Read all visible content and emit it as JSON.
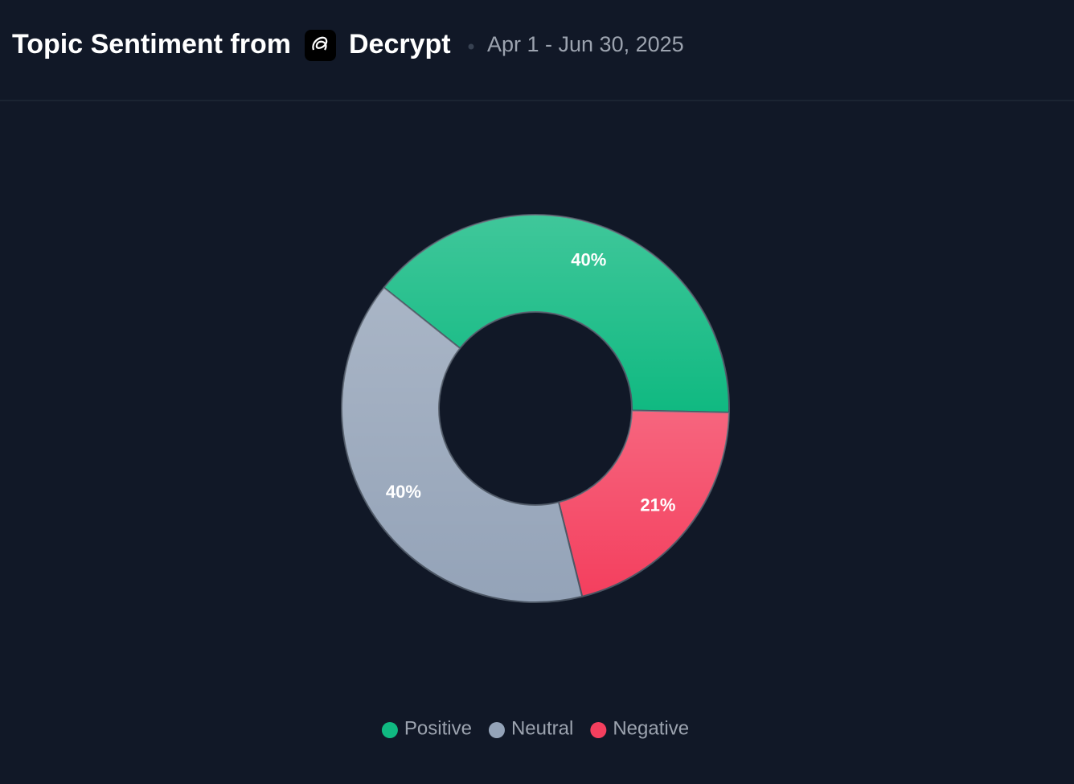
{
  "chart_data": {
    "type": "donut",
    "title": "Topic Sentiment from",
    "source": "Decrypt",
    "subtitle": "Apr 1 - Jun 30, 2025",
    "categories": [
      "Positive",
      "Neutral",
      "Negative"
    ],
    "values": [
      40,
      40,
      21
    ],
    "value_labels": [
      "40%",
      "40%",
      "21%"
    ],
    "colors": [
      "#10b981",
      "#94a3b8",
      "#f43f5e"
    ],
    "legend": "bottom"
  }
}
